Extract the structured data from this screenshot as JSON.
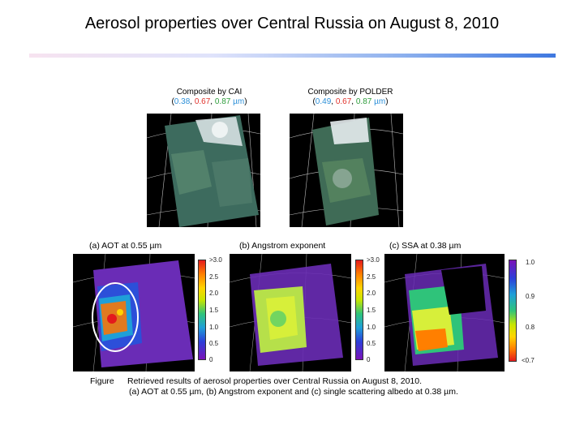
{
  "title": "Aerosol properties over Central Russia on August 8, 2010",
  "composites": [
    {
      "label": "Composite by CAI",
      "wavelengths": [
        "0.38",
        "0.67",
        "0.87"
      ],
      "unit": "µm"
    },
    {
      "label": "Composite by POLDER",
      "wavelengths": [
        "0.49",
        "0.67",
        "0.87"
      ],
      "unit": "µm"
    }
  ],
  "panels": [
    {
      "label": "(a) AOT at 0.55 µm",
      "ticks": [
        ">3.0",
        "2.5",
        "2.0",
        "1.5",
        "1.0",
        "0.5",
        "0"
      ]
    },
    {
      "label": "(b) Angstrom exponent",
      "ticks": [
        ">3.0",
        "2.5",
        "2.0",
        "1.5",
        "1.0",
        "0.5",
        "0"
      ]
    },
    {
      "label": "(c) SSA at 0.38 µm",
      "ticks": [
        "1.0",
        "0.9",
        "0.8",
        "<0.7"
      ]
    }
  ],
  "caption": {
    "prefix": "Figure",
    "line1": "Retrieved results of aerosol properties over Central Russia on August 8, 2010.",
    "line2": "(a) AOT at 0.55 µm, (b) Angstrom exponent and (c) single scattering albedo at 0.38 µm."
  },
  "colors": {
    "title_rule_start": "#f7e3f0",
    "title_rule_end": "#3f78e0",
    "wl_blue": "#2b8fd8",
    "wl_red": "#e0322b",
    "wl_green": "#2c9c3a"
  }
}
